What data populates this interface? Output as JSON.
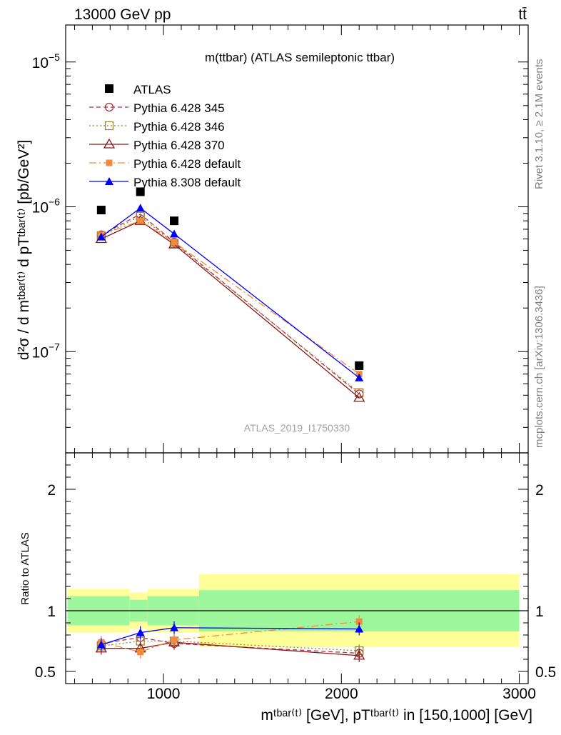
{
  "header": {
    "energy_label": "13000 GeV pp",
    "process_label": "tt̄"
  },
  "side_labels": {
    "rivet": "Rivet 3.1.10, ≥ 2.1M events",
    "mcplots": "mcplots.cern.ch [arXiv:1306.3436]"
  },
  "main_panel": {
    "title": "m(ttbar) (ATLAS semileptonic ttbar)",
    "analysis_id": "ATLAS_2019_I1750330",
    "y_axis_label": "d²σ / d m^{tbar{t}} d p_T^{tbar{t}}[pb/GeV²]",
    "y_scale": "log",
    "y_range": [
      2e-08,
      1.8e-05
    ],
    "y_tick_labels": [
      {
        "v": 1e-07,
        "label": "10",
        "exp": "−7"
      },
      {
        "v": 1e-06,
        "label": "10",
        "exp": "−6"
      },
      {
        "v": 1e-05,
        "label": "10",
        "exp": "−5"
      }
    ]
  },
  "ratio_panel": {
    "y_axis_label": "Ratio to ATLAS",
    "y_range": [
      0.4,
      2.3
    ],
    "y_tick_labels": [
      {
        "v": 0.5,
        "label": "0.5"
      },
      {
        "v": 1,
        "label": "1"
      },
      {
        "v": 2,
        "label": "2"
      }
    ]
  },
  "x_axis": {
    "label": "m^{tbar{t}} [GeV], p_T^{tbar{t}} in [150,1000] [GeV]",
    "range": [
      450,
      3050
    ],
    "tick_labels": [
      {
        "v": 1000,
        "label": "1000"
      },
      {
        "v": 2000,
        "label": "2000"
      },
      {
        "v": 3000,
        "label": "3000"
      }
    ]
  },
  "colors": {
    "atlas": "#000000",
    "p345": "#b22f44",
    "p346": "#9a8236",
    "p370": "#8b1a1a",
    "p6def": "#f08a3c",
    "p8def": "#0000ff",
    "band_inner": "#9ef79c",
    "band_outer": "#ffff99"
  },
  "chart_data": {
    "type": "line",
    "x_bins": [
      [
        460,
        810
      ],
      [
        810,
        910
      ],
      [
        910,
        1200
      ],
      [
        1200,
        3000
      ]
    ],
    "x": [
      650,
      870,
      1060,
      2100
    ],
    "series": [
      {
        "name": "ATLAS",
        "key": "atlas",
        "style": "data",
        "values": [
          9.5e-07,
          1.27e-06,
          8e-07,
          8e-08
        ]
      },
      {
        "name": "Pythia 6.428 345",
        "key": "p345",
        "style": "dash",
        "marker": "circle-open",
        "values": [
          6.4e-07,
          8.9e-07,
          5.7e-07,
          5.1e-08
        ],
        "ratio": [
          0.73,
          0.78,
          0.73,
          0.65
        ]
      },
      {
        "name": "Pythia 6.428 346",
        "key": "p346",
        "style": "dot",
        "marker": "square-open",
        "values": [
          6.3e-07,
          8.6e-07,
          5.6e-07,
          5.2e-08
        ],
        "ratio": [
          0.71,
          0.75,
          0.75,
          0.67
        ]
      },
      {
        "name": "Pythia 6.428 370",
        "key": "p370",
        "style": "solid",
        "marker": "triangle-open",
        "values": [
          6e-07,
          8e-07,
          5.5e-07,
          4.8e-08
        ],
        "ratio": [
          0.69,
          0.69,
          0.74,
          0.63
        ]
      },
      {
        "name": "Pythia 6.428 default",
        "key": "p6def",
        "style": "dashdot",
        "marker": "square-filled",
        "values": [
          6.4e-07,
          8e-07,
          5.7e-07,
          7e-08
        ],
        "ratio": [
          0.74,
          0.66,
          0.76,
          0.91
        ]
      },
      {
        "name": "Pythia 8.308 default",
        "key": "p8def",
        "style": "solid",
        "marker": "triangle-filled",
        "values": [
          6.2e-07,
          9.8e-07,
          6.5e-07,
          6.6e-08
        ],
        "ratio": [
          0.72,
          0.82,
          0.86,
          0.85
        ]
      }
    ],
    "ratio_bands": {
      "inner_half_width": [
        0.12,
        0.09,
        0.12,
        0.17
      ],
      "outer_half_width": [
        0.18,
        0.15,
        0.18,
        0.3
      ]
    }
  }
}
